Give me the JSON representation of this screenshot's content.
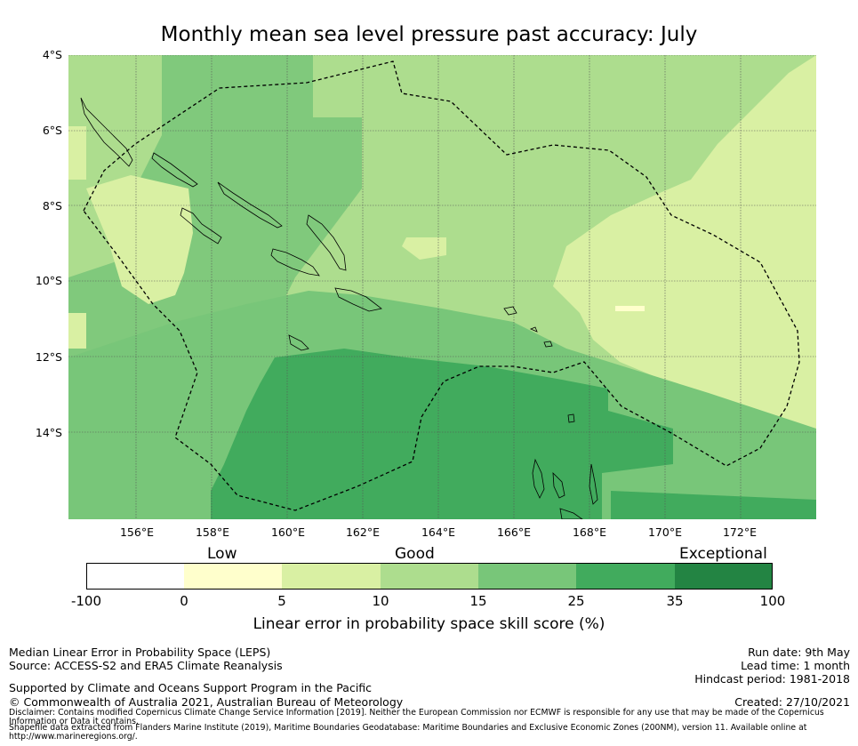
{
  "title": "Monthly mean sea level pressure past accuracy: July",
  "map": {
    "lat_labels": [
      "4°S",
      "6°S",
      "8°S",
      "10°S",
      "12°S",
      "14°S"
    ],
    "lon_labels": [
      "156°E",
      "158°E",
      "160°E",
      "162°E",
      "164°E",
      "166°E",
      "168°E",
      "170°E",
      "172°E"
    ],
    "extent": {
      "lon_min": 154.2,
      "lon_max": 174.0,
      "lat_min": -16.2,
      "lat_max": -4.0
    },
    "gridlines": true
  },
  "colorbar": {
    "category_labels": [
      "Low",
      "Good",
      "Exceptional"
    ],
    "ticks": [
      "-100",
      "0",
      "5",
      "10",
      "15",
      "25",
      "35",
      "100"
    ],
    "colors": [
      "#ffffff",
      "#ffffcc",
      "#d9f0a3",
      "#addd8e",
      "#78c679",
      "#41ab5d",
      "#238443"
    ],
    "title": "Linear error in probability space skill score (%)"
  },
  "footer": {
    "left_line1": "Median Linear Error in Probability Space (LEPS)",
    "left_line2": "Source: ACCESS-S2 and ERA5 Climate Reanalysis",
    "support": "Supported by Climate and Oceans Support Program in the Pacific",
    "copyright": "© Commonwealth of Australia 2021, Australian Bureau of Meteorology",
    "disclaimer1": "Disclaimer: Contains modified Copernicus Climate Change Service Information [2019]. Neither the European Commission nor ECMWF is responsible for any use that may be made of the Copernicus",
    "disclaimer2": "Information or Data it contains.",
    "shapefile1": "Shapefile data extracted from Flanders Marine Institute (2019), Maritime Boundaries Geodatabase: Maritime Boundaries and Exclusive Economic Zones (200NM), version 11. Available online at",
    "shapefile2": "http://www.marineregions.org/.",
    "run_date": "Run date: 9th May",
    "lead_time": "Lead time: 1 month",
    "hindcast": "Hindcast period: 1981-2018",
    "created": "Created: 27/10/2021"
  }
}
